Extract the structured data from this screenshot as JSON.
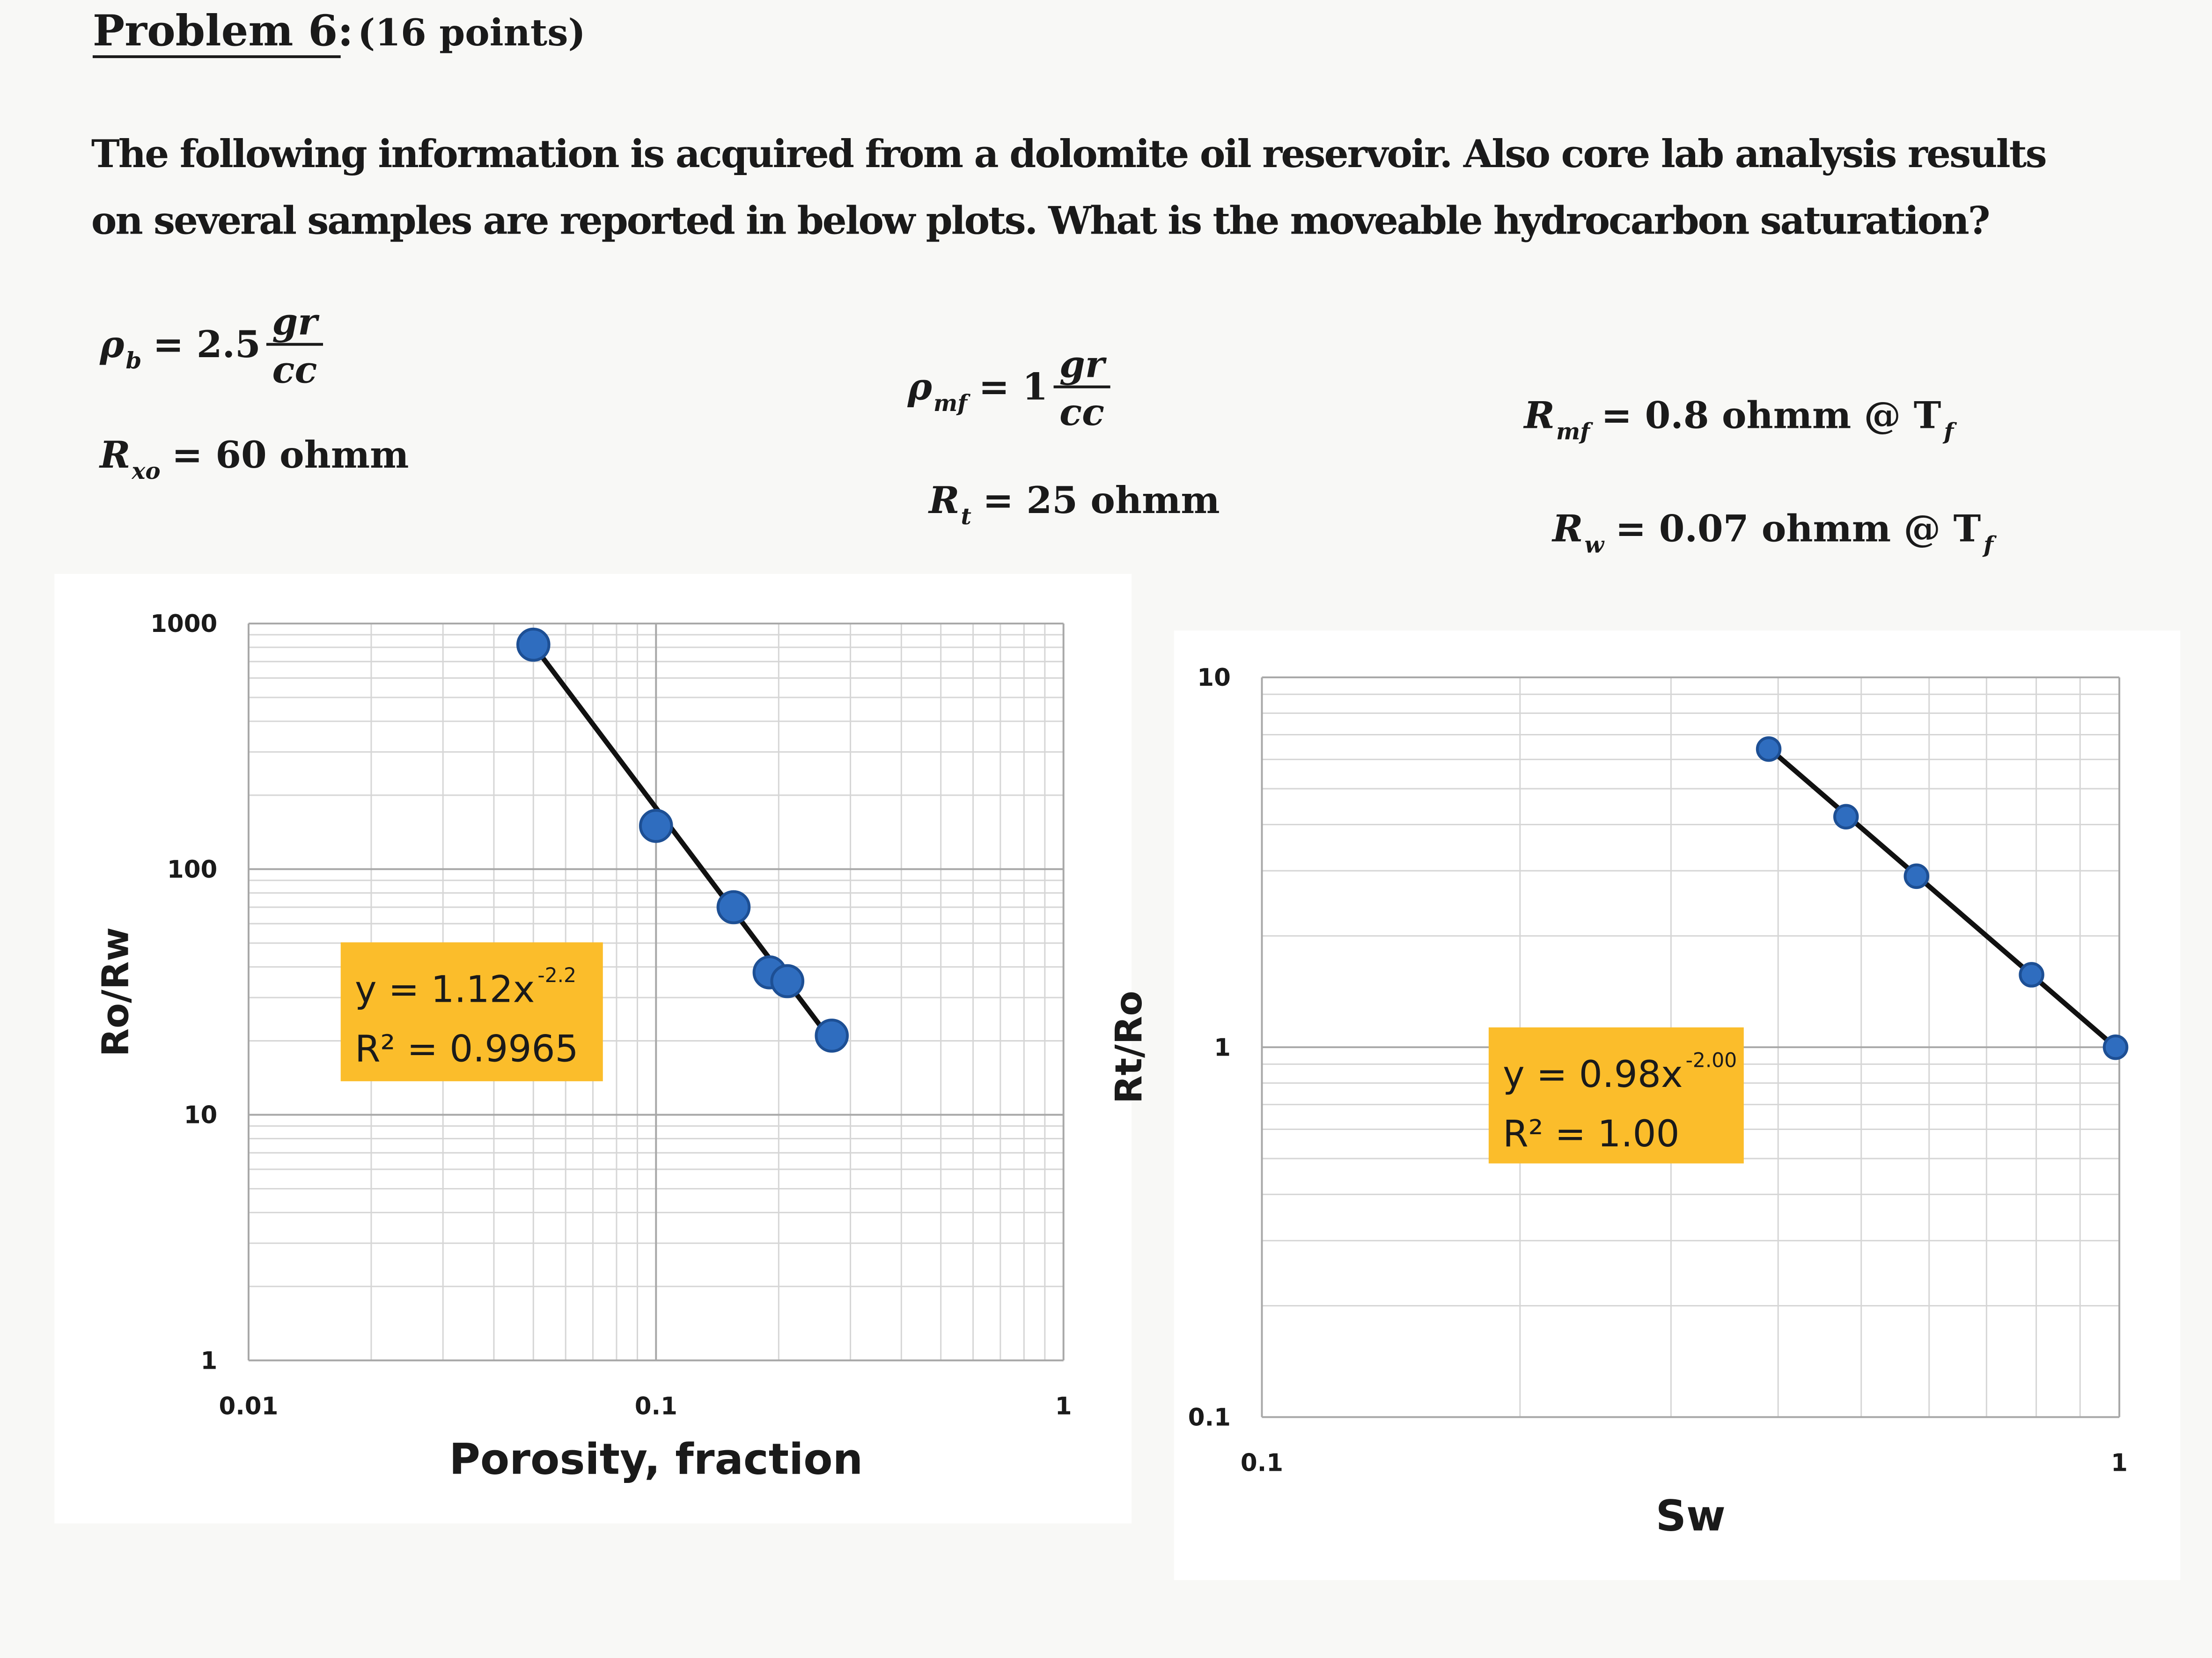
{
  "header": {
    "title": "Problem 6:",
    "points": "(16 points)"
  },
  "text": {
    "lines": [
      "The following information is acquired from a dolomite oil reservoir. Also core lab analysis results",
      "on several samples are reported in below plots. What is the moveable hydrocarbon saturation?"
    ]
  },
  "equations": [
    {
      "symbol": "ρ",
      "sub": "b",
      "rhs": "= 2.5",
      "numerator": "gr",
      "denominator": "cc"
    },
    {
      "symbol": "R",
      "sub": "xo",
      "rhs": "= 60 ohmm"
    },
    {
      "symbol": "ρ",
      "sub": "mf",
      "rhs": "= 1",
      "numerator": "gr",
      "denominator": "cc"
    },
    {
      "symbol": "R",
      "sub": "t",
      "rhs": "=  25 ohmm"
    },
    {
      "symbol": "R",
      "sub": "mf",
      "rhs": "= 0.8 ohmm @ T",
      "rhs_sub": "f"
    },
    {
      "symbol": "R",
      "sub": "w",
      "rhs": "= 0.07 ohmm @ T",
      "rhs_sub": "f"
    }
  ],
  "chart_data": [
    {
      "type": "scatter",
      "x_label": "Porosity, fraction",
      "y_label": "Ro/Rw",
      "color": "#2f6dbf",
      "log_scale": true,
      "grid": true,
      "minor_grid": true,
      "x": [
        0.05,
        0.1,
        0.155,
        0.19,
        0.21,
        0.27
      ],
      "values": [
        820,
        150,
        70,
        38,
        35,
        21
      ],
      "xlim": [
        0.01,
        1
      ],
      "ylim": [
        1,
        1000
      ],
      "xticks": [
        0.01,
        0.1,
        1
      ],
      "yticks": [
        1,
        10,
        100,
        1000
      ],
      "fit": {
        "coefficient": 1.12,
        "exponent": -2.2
      },
      "annotation": {
        "equation": "y = 1.12x",
        "exponent_label": "-2.2",
        "r_squared": "R² = 0.9965"
      }
    },
    {
      "type": "scatter",
      "x_label": "Sw",
      "y_label": "Rt/Ro",
      "color": "#2f6dbf",
      "log_scale": true,
      "grid": true,
      "minor_grid": true,
      "x": [
        0.39,
        0.48,
        0.58,
        0.79,
        0.99
      ],
      "values": [
        6.4,
        4.2,
        2.9,
        1.57,
        1.0
      ],
      "xlim": [
        0.1,
        1
      ],
      "ylim": [
        0.1,
        10
      ],
      "xticks": [
        0.1,
        1
      ],
      "yticks": [
        0.1,
        1,
        10
      ],
      "fit": {
        "coefficient": 0.98,
        "exponent": -2.0
      },
      "annotation": {
        "equation": "y = 0.98x",
        "exponent_label": "-2.00",
        "r_squared": "R² = 1.00"
      }
    }
  ]
}
